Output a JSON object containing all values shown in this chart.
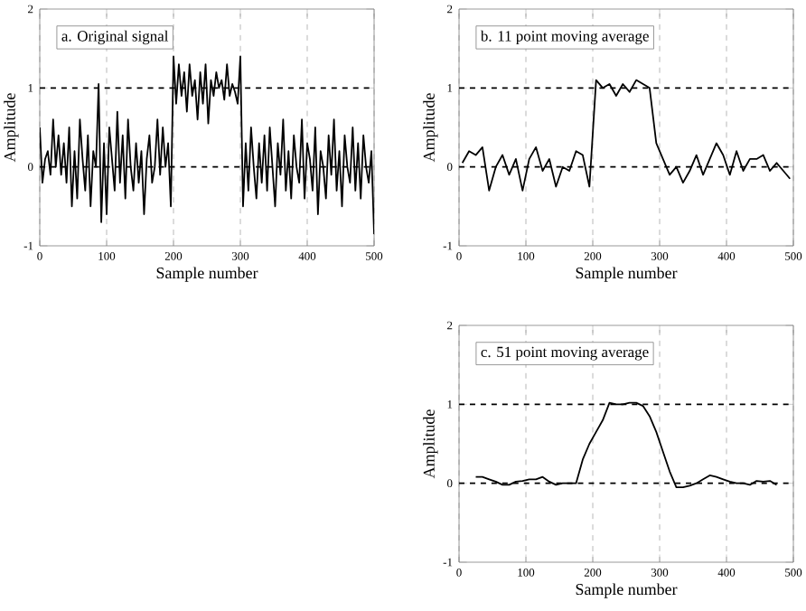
{
  "chart_data": [
    {
      "type": "line",
      "title": "a.   Original signal",
      "xlabel": "Sample number",
      "ylabel": "Amplitude",
      "xlim": [
        0,
        500
      ],
      "ylim": [
        -1,
        2
      ],
      "xticks": [
        0,
        100,
        200,
        300,
        400,
        500
      ],
      "yticks": [
        -1,
        0,
        1,
        2
      ],
      "grid": "x",
      "ref_lines": [
        {
          "axis": "y",
          "value": 0
        },
        {
          "axis": "y",
          "value": 1
        }
      ],
      "x": [
        0,
        4,
        8,
        12,
        16,
        20,
        24,
        28,
        32,
        36,
        40,
        44,
        48,
        52,
        56,
        60,
        64,
        68,
        72,
        76,
        80,
        84,
        88,
        92,
        96,
        100,
        104,
        108,
        112,
        116,
        120,
        124,
        128,
        132,
        136,
        140,
        144,
        148,
        152,
        156,
        160,
        164,
        168,
        172,
        176,
        180,
        184,
        188,
        192,
        196,
        200,
        204,
        208,
        212,
        216,
        220,
        224,
        228,
        232,
        236,
        240,
        244,
        248,
        252,
        256,
        260,
        264,
        268,
        272,
        276,
        280,
        284,
        288,
        292,
        296,
        300,
        304,
        308,
        312,
        316,
        320,
        324,
        328,
        332,
        336,
        340,
        344,
        348,
        352,
        356,
        360,
        364,
        368,
        372,
        376,
        380,
        384,
        388,
        392,
        396,
        400,
        404,
        408,
        412,
        416,
        420,
        424,
        428,
        432,
        436,
        440,
        444,
        448,
        452,
        456,
        460,
        464,
        468,
        472,
        476,
        480,
        484,
        488,
        492,
        496,
        500
      ],
      "series": [
        {
          "color": "#000000",
          "values": [
            0.5,
            -0.2,
            0.1,
            0.2,
            -0.1,
            0.6,
            0.0,
            0.4,
            -0.1,
            0.3,
            -0.2,
            0.5,
            -0.5,
            0.2,
            -0.4,
            0.6,
            0.1,
            -0.3,
            0.4,
            -0.5,
            0.2,
            0.0,
            1.05,
            -0.7,
            0.3,
            -0.6,
            0.5,
            0.1,
            -0.3,
            0.7,
            -0.2,
            0.4,
            -0.4,
            0.6,
            0.0,
            -0.3,
            0.3,
            -0.2,
            0.2,
            -0.6,
            0.1,
            0.4,
            -0.2,
            0.0,
            0.6,
            -0.1,
            0.5,
            0.0,
            0.3,
            -0.5,
            1.4,
            0.8,
            1.3,
            0.9,
            1.2,
            0.7,
            1.3,
            0.9,
            1.1,
            0.6,
            1.2,
            0.8,
            1.3,
            0.55,
            1.1,
            0.9,
            1.2,
            1.0,
            1.1,
            0.85,
            1.3,
            0.9,
            1.05,
            0.95,
            0.8,
            1.4,
            -0.5,
            0.3,
            -0.3,
            0.5,
            0.0,
            -0.4,
            0.3,
            -0.2,
            0.4,
            -0.3,
            0.5,
            0.0,
            -0.5,
            0.3,
            -0.1,
            0.6,
            -0.3,
            0.2,
            -0.4,
            0.4,
            0.0,
            -0.2,
            0.6,
            -0.4,
            0.3,
            0.1,
            -0.3,
            0.5,
            -0.6,
            0.2,
            0.0,
            -0.4,
            0.4,
            -0.1,
            0.6,
            -0.3,
            0.2,
            -0.5,
            0.4,
            0.0,
            -0.2,
            0.5,
            -0.3,
            0.3,
            -0.4,
            0.4,
            0.0,
            -0.2,
            0.2,
            -0.85
          ]
        }
      ]
    },
    {
      "type": "line",
      "title": "b.   11 point moving average",
      "xlabel": "Sample number",
      "ylabel": "Amplitude",
      "xlim": [
        0,
        500
      ],
      "ylim": [
        -1,
        2
      ],
      "xticks": [
        0,
        100,
        200,
        300,
        400,
        500
      ],
      "yticks": [
        -1,
        0,
        1,
        2
      ],
      "grid": "x",
      "ref_lines": [
        {
          "axis": "y",
          "value": 0
        },
        {
          "axis": "y",
          "value": 1
        }
      ],
      "x": [
        5,
        15,
        25,
        35,
        45,
        55,
        65,
        75,
        85,
        95,
        105,
        115,
        125,
        135,
        145,
        155,
        165,
        175,
        185,
        195,
        205,
        215,
        225,
        235,
        245,
        255,
        265,
        275,
        285,
        295,
        305,
        315,
        325,
        335,
        345,
        355,
        365,
        375,
        385,
        395,
        405,
        415,
        425,
        435,
        445,
        455,
        465,
        475,
        485,
        495
      ],
      "series": [
        {
          "color": "#000000",
          "values": [
            0.05,
            0.2,
            0.15,
            0.25,
            -0.3,
            0.0,
            0.15,
            -0.1,
            0.1,
            -0.3,
            0.1,
            0.25,
            -0.05,
            0.1,
            -0.25,
            0.0,
            -0.05,
            0.2,
            0.15,
            -0.25,
            1.1,
            1.0,
            1.05,
            0.9,
            1.05,
            0.95,
            1.1,
            1.05,
            1.0,
            0.3,
            0.1,
            -0.1,
            0.0,
            -0.2,
            -0.05,
            0.15,
            -0.1,
            0.1,
            0.3,
            0.15,
            -0.1,
            0.2,
            -0.05,
            0.1,
            0.1,
            0.15,
            -0.05,
            0.05,
            -0.05,
            -0.15
          ]
        }
      ]
    },
    {
      "type": "line",
      "title": "c.   51 point moving average",
      "xlabel": "Sample number",
      "ylabel": "Amplitude",
      "xlim": [
        0,
        500
      ],
      "ylim": [
        -1,
        2
      ],
      "xticks": [
        0,
        100,
        200,
        300,
        400,
        500
      ],
      "yticks": [
        -1,
        0,
        1,
        2
      ],
      "grid": "x",
      "ref_lines": [
        {
          "axis": "y",
          "value": 0
        },
        {
          "axis": "y",
          "value": 1
        }
      ],
      "x": [
        25,
        35,
        45,
        55,
        65,
        75,
        85,
        95,
        105,
        115,
        125,
        135,
        145,
        155,
        165,
        175,
        185,
        195,
        205,
        215,
        225,
        235,
        245,
        255,
        265,
        275,
        285,
        295,
        305,
        315,
        325,
        335,
        345,
        355,
        365,
        375,
        385,
        395,
        405,
        415,
        425,
        435,
        445,
        455,
        465,
        475
      ],
      "series": [
        {
          "color": "#000000",
          "values": [
            0.08,
            0.08,
            0.05,
            0.02,
            -0.02,
            -0.02,
            0.02,
            0.03,
            0.05,
            0.05,
            0.08,
            0.02,
            -0.02,
            0.0,
            0.0,
            0.0,
            0.3,
            0.5,
            0.65,
            0.8,
            1.02,
            1.0,
            1.0,
            1.02,
            1.02,
            0.98,
            0.85,
            0.65,
            0.4,
            0.15,
            -0.05,
            -0.05,
            -0.03,
            0.0,
            0.05,
            0.1,
            0.08,
            0.05,
            0.02,
            0.0,
            0.0,
            -0.02,
            0.03,
            0.02,
            0.03,
            -0.02
          ]
        }
      ]
    }
  ]
}
